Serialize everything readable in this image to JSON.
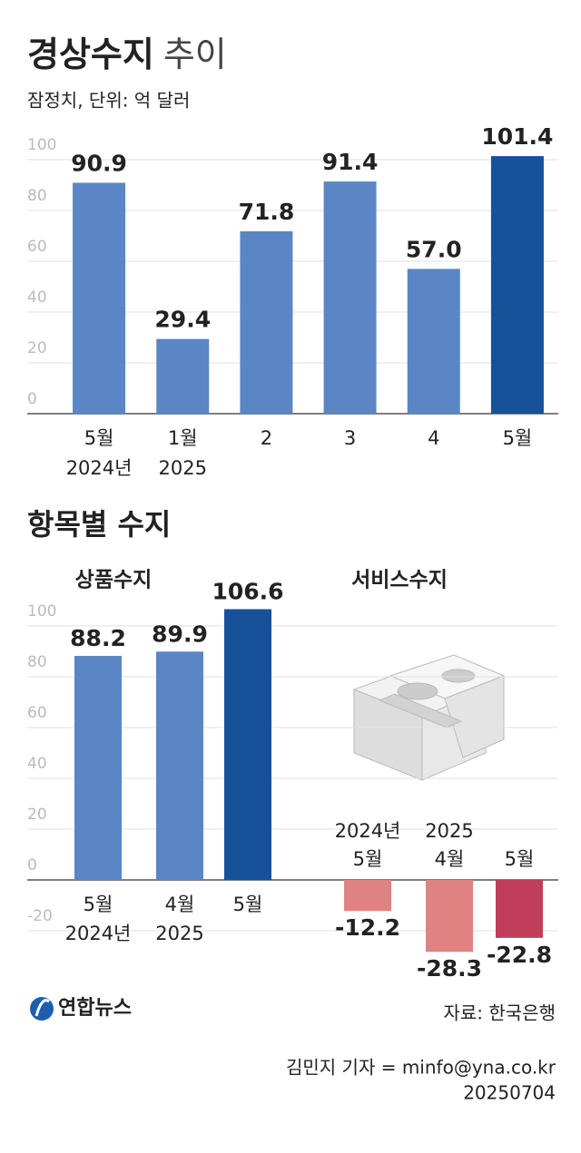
{
  "chart_data": [
    {
      "type": "bar",
      "title": "경상수지",
      "title_suffix": "추이",
      "subtitle": "잠정치, 단위: 억 달러",
      "categories": [
        "5월",
        "1월",
        "2",
        "3",
        "4",
        "5월"
      ],
      "category_years": [
        "2024년",
        "2025",
        null,
        null,
        null,
        null
      ],
      "values": [
        90.9,
        29.4,
        71.8,
        91.4,
        57.0,
        101.4
      ],
      "value_labels": [
        "90.9",
        "29.4",
        "71.8",
        "91.4",
        "57.0",
        "101.4"
      ],
      "colors": [
        "#5b86c5",
        "#5b86c5",
        "#5b86c5",
        "#5b86c5",
        "#5b86c5",
        "#17519a"
      ],
      "ylim": [
        0,
        110
      ],
      "yticks": [
        0,
        20,
        40,
        60,
        80,
        100
      ],
      "grid": true
    },
    {
      "type": "grouped-bar",
      "title": "항목별 수지",
      "ylim": [
        -40,
        110
      ],
      "yticks": [
        -20,
        0,
        20,
        40,
        60,
        80,
        100
      ],
      "grid": true,
      "groups": [
        {
          "name": "상품수지",
          "categories": [
            "5월",
            "4월",
            "5월"
          ],
          "category_years": [
            "2024년",
            "2025",
            null
          ],
          "values": [
            88.2,
            89.9,
            106.6
          ],
          "colors": [
            "#5b86c5",
            "#5b86c5",
            "#17519a"
          ],
          "label_colors": [
            "#5b86c5",
            "#5b86c5",
            "#17519a"
          ]
        },
        {
          "name": "서비스수지",
          "categories": [
            "5월",
            "4월",
            "5월"
          ],
          "category_years": [
            "2024년",
            "2025",
            null
          ],
          "values": [
            -12.2,
            -28.3,
            -22.8
          ],
          "colors": [
            "#e08282",
            "#e08282",
            "#c23d5a"
          ],
          "label_colors": [
            "#e08282",
            "#e08282",
            "#c23d5a"
          ]
        }
      ]
    }
  ],
  "footer": {
    "logo": "연합뉴스",
    "source": "자료: 한국은행",
    "credit": "김민지 기자 = minfo@yna.co.kr",
    "date": "20250704"
  }
}
